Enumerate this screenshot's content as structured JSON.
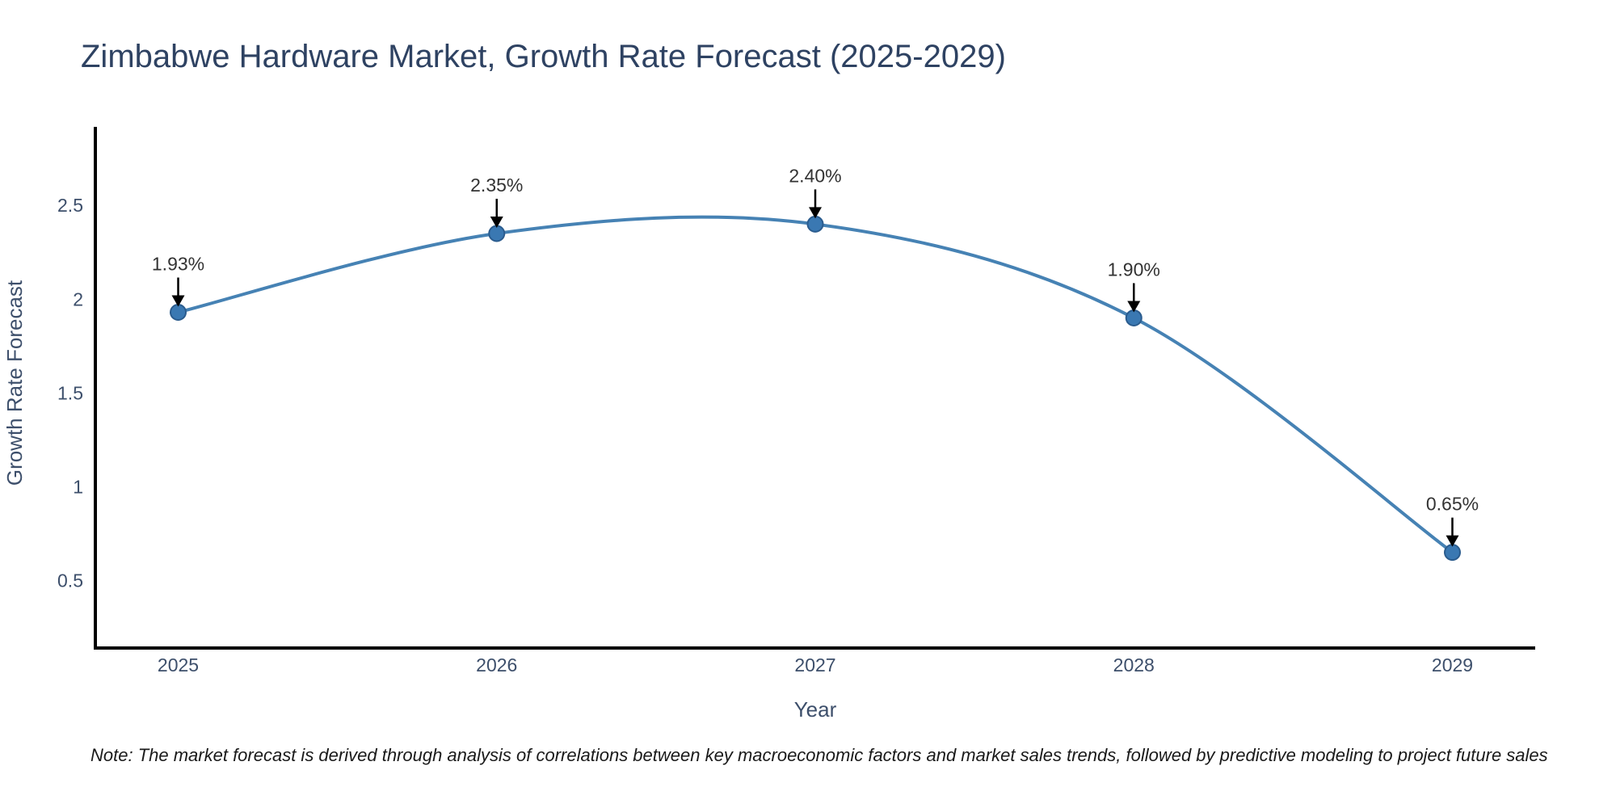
{
  "chart_data": {
    "type": "line",
    "title": "Zimbabwe Hardware Market, Growth Rate Forecast (2025-2029)",
    "xlabel": "Year",
    "ylabel": "Growth Rate Forecast",
    "x": [
      2025,
      2026,
      2027,
      2028,
      2029
    ],
    "values": [
      1.93,
      2.35,
      2.4,
      1.9,
      0.65
    ],
    "point_labels": [
      "1.93%",
      "2.35%",
      "2.40%",
      "1.90%",
      "0.65%"
    ],
    "series_name": "Growth Rate Forecast",
    "xticks": [
      2025,
      2026,
      2027,
      2028,
      2029
    ],
    "yticks": [
      2.5,
      2,
      1.5,
      1,
      0.5
    ],
    "xlim": [
      2024.74,
      2029.26
    ],
    "ylim": [
      0.14,
      2.91
    ],
    "grid": false,
    "legend": false,
    "smooth": true,
    "annotation_style": "value label with black arrow pointing down to marker",
    "note": "Note: The market forecast is derived through analysis of correlations between key macroeconomic factors and market sales trends, followed by predictive modeling to project future sales",
    "colors": {
      "line": "#4682b4",
      "marker_fill": "#3a78b2",
      "marker_stroke": "#2b5c8e",
      "annotation_text": "#333333",
      "arrow": "#000000",
      "axis_line": "#000000",
      "title_text": "#2e4262",
      "tick_text": "#3d4f6b",
      "note_text": "#1a1a1a",
      "background": "#ffffff"
    }
  }
}
